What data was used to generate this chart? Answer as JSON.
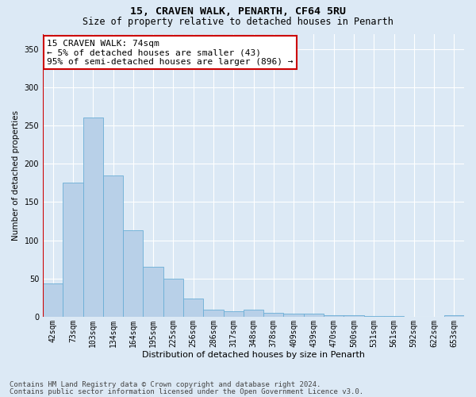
{
  "title1": "15, CRAVEN WALK, PENARTH, CF64 5RU",
  "title2": "Size of property relative to detached houses in Penarth",
  "xlabel": "Distribution of detached houses by size in Penarth",
  "ylabel": "Number of detached properties",
  "categories": [
    "42sqm",
    "73sqm",
    "103sqm",
    "134sqm",
    "164sqm",
    "195sqm",
    "225sqm",
    "256sqm",
    "286sqm",
    "317sqm",
    "348sqm",
    "378sqm",
    "409sqm",
    "439sqm",
    "470sqm",
    "500sqm",
    "531sqm",
    "561sqm",
    "592sqm",
    "622sqm",
    "653sqm"
  ],
  "values": [
    44,
    175,
    260,
    185,
    113,
    65,
    50,
    24,
    9,
    7,
    9,
    5,
    4,
    4,
    2,
    2,
    1,
    1,
    0,
    0,
    2
  ],
  "bar_color": "#b8d0e8",
  "bar_edge_color": "#6aaed6",
  "highlight_color": "#cc0000",
  "annotation_text": "15 CRAVEN WALK: 74sqm\n← 5% of detached houses are smaller (43)\n95% of semi-detached houses are larger (896) →",
  "annotation_box_color": "#ffffff",
  "annotation_box_edge_color": "#cc0000",
  "footer_line1": "Contains HM Land Registry data © Crown copyright and database right 2024.",
  "footer_line2": "Contains public sector information licensed under the Open Government Licence v3.0.",
  "background_color": "#dce9f5",
  "plot_bg_color": "#dce9f5",
  "grid_color": "#ffffff",
  "ylim": [
    0,
    370
  ],
  "yticks": [
    0,
    50,
    100,
    150,
    200,
    250,
    300,
    350
  ],
  "title1_fontsize": 9.5,
  "title2_fontsize": 8.5,
  "xlabel_fontsize": 8,
  "ylabel_fontsize": 7.5,
  "tick_fontsize": 7,
  "footer_fontsize": 6.5,
  "annotation_fontsize": 8
}
